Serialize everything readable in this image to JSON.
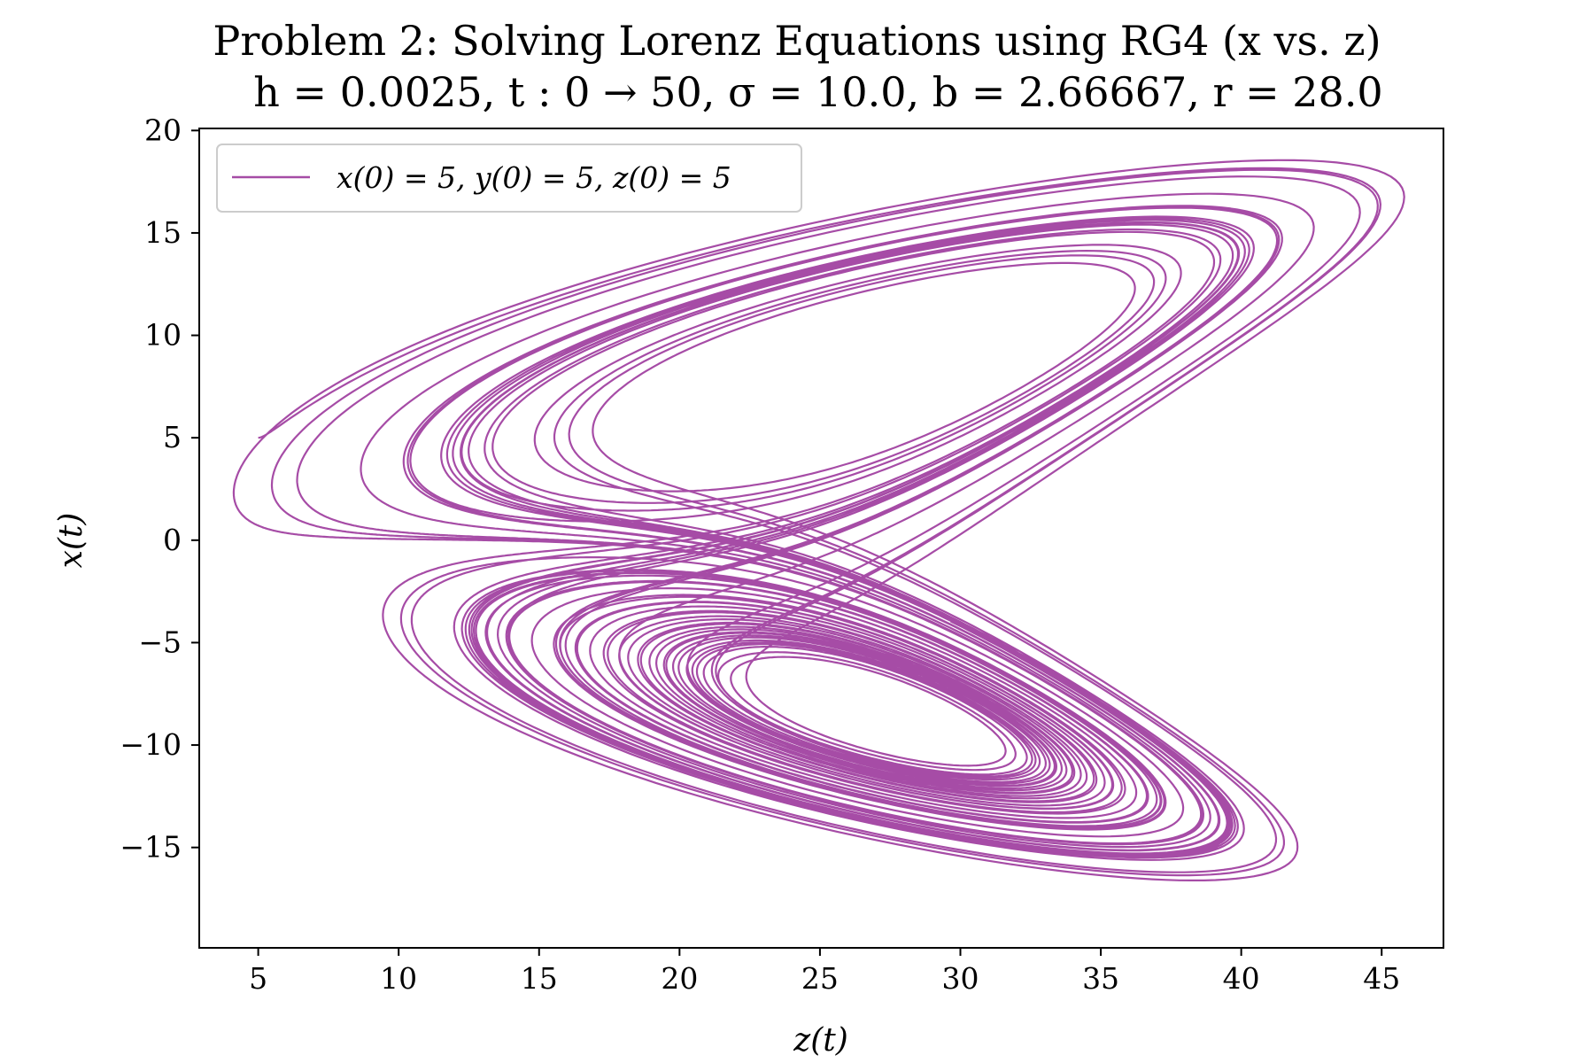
{
  "chart_data": {
    "type": "line",
    "title": "Problem 2: Solving Lorenz Equations using RG4 (x vs. z)",
    "subtitle": "h = 0.0025, t : 0 → 50, σ = 10.0, b = 2.66667, r = 28.0",
    "xlabel": "z(t)",
    "ylabel": "x(t)",
    "xlim": [
      2.9,
      47.2
    ],
    "ylim": [
      -19.9,
      20.1
    ],
    "x_ticks": [
      5,
      10,
      15,
      20,
      25,
      30,
      35,
      40,
      45
    ],
    "y_ticks": [
      20,
      15,
      10,
      5,
      0,
      -5,
      -10,
      -15
    ],
    "x_tick_labels": [
      "5",
      "10",
      "15",
      "20",
      "25",
      "30",
      "35",
      "40",
      "45"
    ],
    "y_tick_labels": [
      "20",
      "15",
      "10",
      "5",
      "0",
      "−5",
      "−10",
      "−15"
    ],
    "grid": false,
    "legend_position": "top-left",
    "series": [
      {
        "name": "x(0) = 5, y(0) = 5, z(0) = 5",
        "color": "#a64ca6",
        "model": {
          "system": "lorenz",
          "sigma": 10.0,
          "b": 2.66667,
          "r": 28.0,
          "h": 0.0025,
          "t_start": 0,
          "t_end": 50,
          "x0": 5,
          "y0": 5,
          "z0": 5,
          "method": "RK4",
          "x_axis_variable": "z",
          "y_axis_variable": "x"
        }
      }
    ]
  }
}
